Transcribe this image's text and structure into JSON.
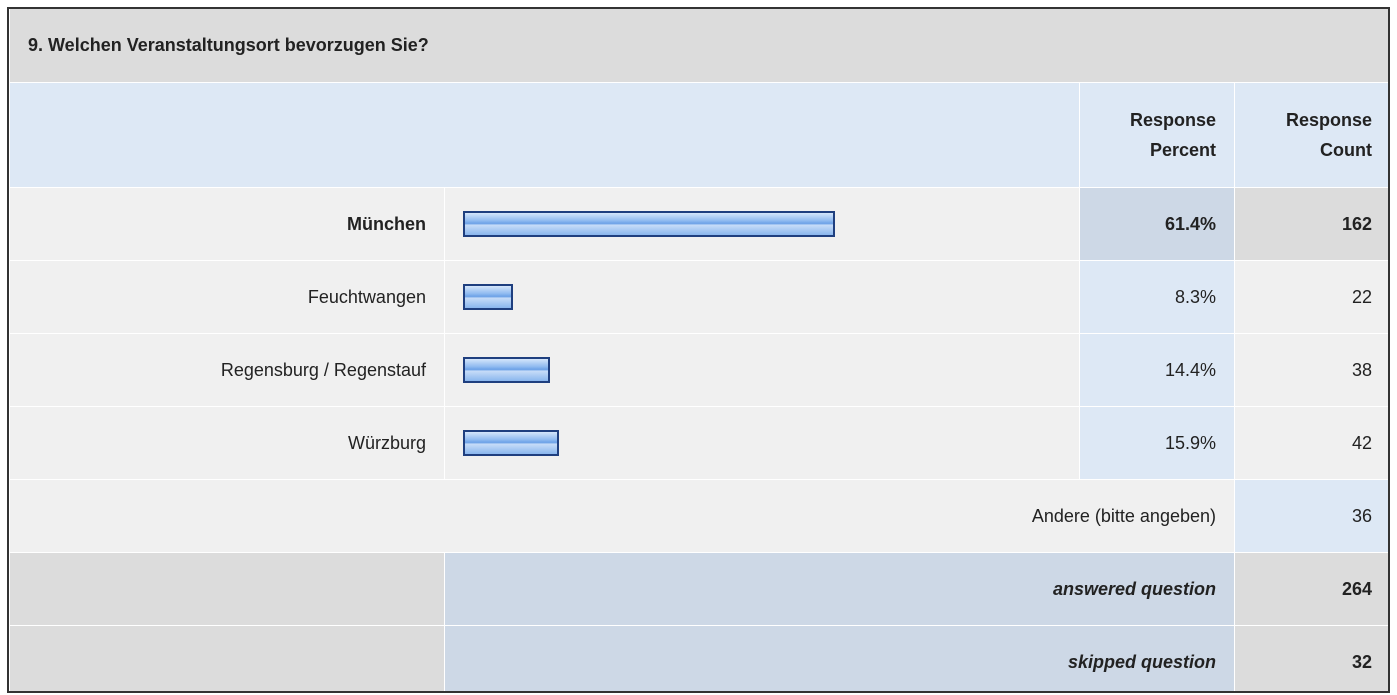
{
  "title": "9. Welchen Veranstaltungsort bevorzugen Sie?",
  "header": {
    "percent": "Response Percent",
    "count": "Response Count"
  },
  "rows": [
    {
      "label": "München",
      "percent": {
        "value": 61.4,
        "label": "61.4%"
      },
      "count": 162
    },
    {
      "label": "Feuchtwangen",
      "percent": {
        "value": 8.3,
        "label": "8.3%"
      },
      "count": 22
    },
    {
      "label": "Regensburg / Regenstauf",
      "percent": {
        "value": 14.4,
        "label": "14.4%"
      },
      "count": 38
    },
    {
      "label": "Würzburg",
      "percent": {
        "value": 15.9,
        "label": "15.9%"
      },
      "count": 42
    }
  ],
  "other": {
    "label": "Andere (bitte angeben)",
    "count": 36
  },
  "answered": {
    "label": "answered question",
    "count": 264
  },
  "skipped": {
    "label": "skipped question",
    "count": 32
  }
}
